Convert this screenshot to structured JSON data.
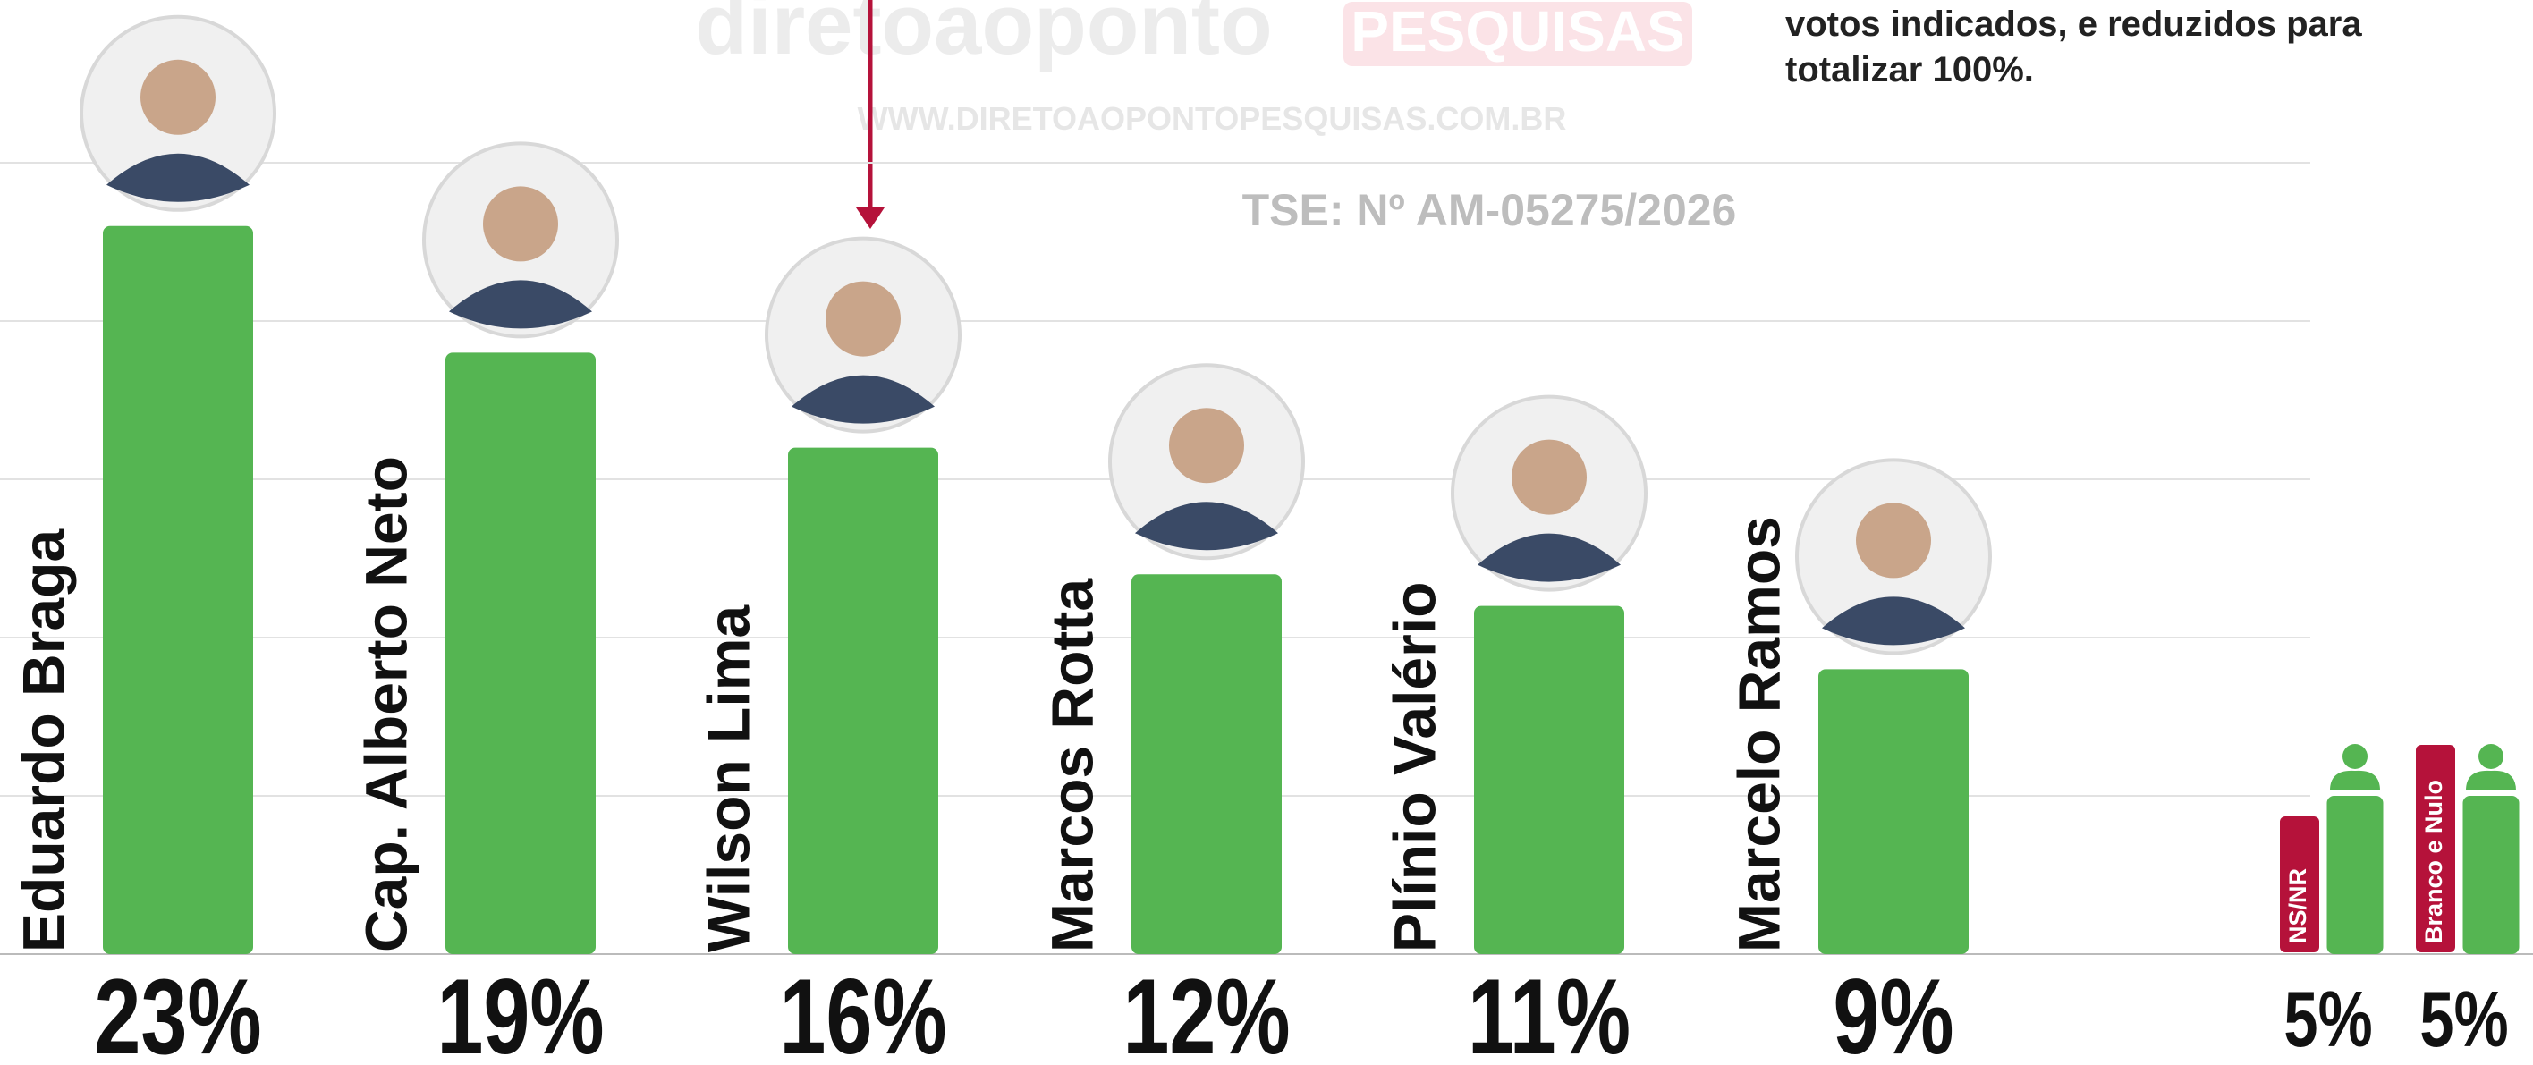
{
  "chart_data": {
    "type": "bar",
    "categories": [
      "Eduardo Braga",
      "Cap. Alberto Neto",
      "Wilson Lima",
      "Marcos Rotta",
      "Plínio Valério",
      "Marcelo Ramos",
      "NS/NR",
      "Branco e Nulo"
    ],
    "values": [
      23,
      19,
      16,
      12,
      11,
      9,
      5,
      5
    ],
    "value_labels": [
      "23%",
      "19%",
      "16%",
      "12%",
      "11%",
      "9%",
      "5%",
      "5%"
    ],
    "color": "#55b552",
    "ylim": [
      0,
      25
    ],
    "yticks": [
      0,
      5,
      10,
      15,
      20,
      25
    ],
    "grid": true,
    "annotations": {
      "note": [
        "votos indicados, e reduzidos para",
        "totalizar 100%."
      ],
      "registration": "TSE: Nº AM-05275/2026"
    }
  },
  "watermark": {
    "brand": "diretoaoponto",
    "badge": "PESQUISAS",
    "url": "WWW.DIRETOAOPONTOPESQUISAS.COM.BR"
  }
}
